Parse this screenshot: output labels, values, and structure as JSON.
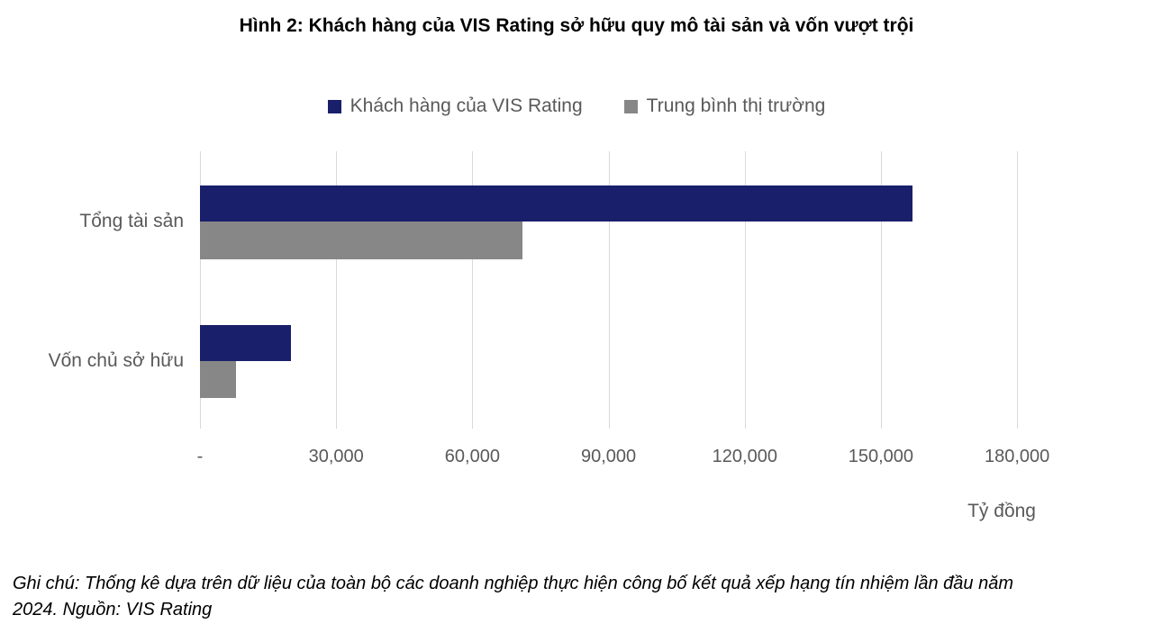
{
  "title": "Hình 2: Khách hàng của VIS Rating sở hữu quy mô tài sản và vốn vượt trội",
  "note": "Ghi chú: Thống kê dựa trên dữ liệu của toàn bộ các doanh nghiệp thực hiện công bố kết quả xếp hạng tín nhiệm lần đầu năm 2024. Nguồn: VIS Rating",
  "axis_unit": "Tỷ đồng",
  "colors": {
    "series_vis_rating": "#1a1f6b",
    "series_market_avg": "#878787",
    "axis_text": "#595959",
    "gridline": "#d9d9d9",
    "title_text": "#000000"
  },
  "chart_data": {
    "type": "bar",
    "orientation": "horizontal",
    "title": "Hình 2: Khách hàng của VIS Rating sở hữu quy mô tài sản và vốn vượt trội",
    "categories": [
      "Tổng tài sản",
      "Vốn chủ sở hữu"
    ],
    "series": [
      {
        "name": "Khách hàng của VIS Rating",
        "color": "#1a1f6b",
        "values": [
          157000,
          20000
        ]
      },
      {
        "name": "Trung bình thị trường",
        "color": "#878787",
        "values": [
          71000,
          8000
        ]
      }
    ],
    "x_ticks": [
      {
        "label": "-",
        "value": 0
      },
      {
        "label": "30,000",
        "value": 30000
      },
      {
        "label": "60,000",
        "value": 60000
      },
      {
        "label": "90,000",
        "value": 90000
      },
      {
        "label": "120,000",
        "value": 120000
      },
      {
        "label": "150,000",
        "value": 150000
      },
      {
        "label": "180,000",
        "value": 180000
      }
    ],
    "xlim": [
      0,
      180000
    ],
    "xlabel": "Tỷ đồng",
    "grid": "vertical",
    "legend_position": "top-center"
  }
}
